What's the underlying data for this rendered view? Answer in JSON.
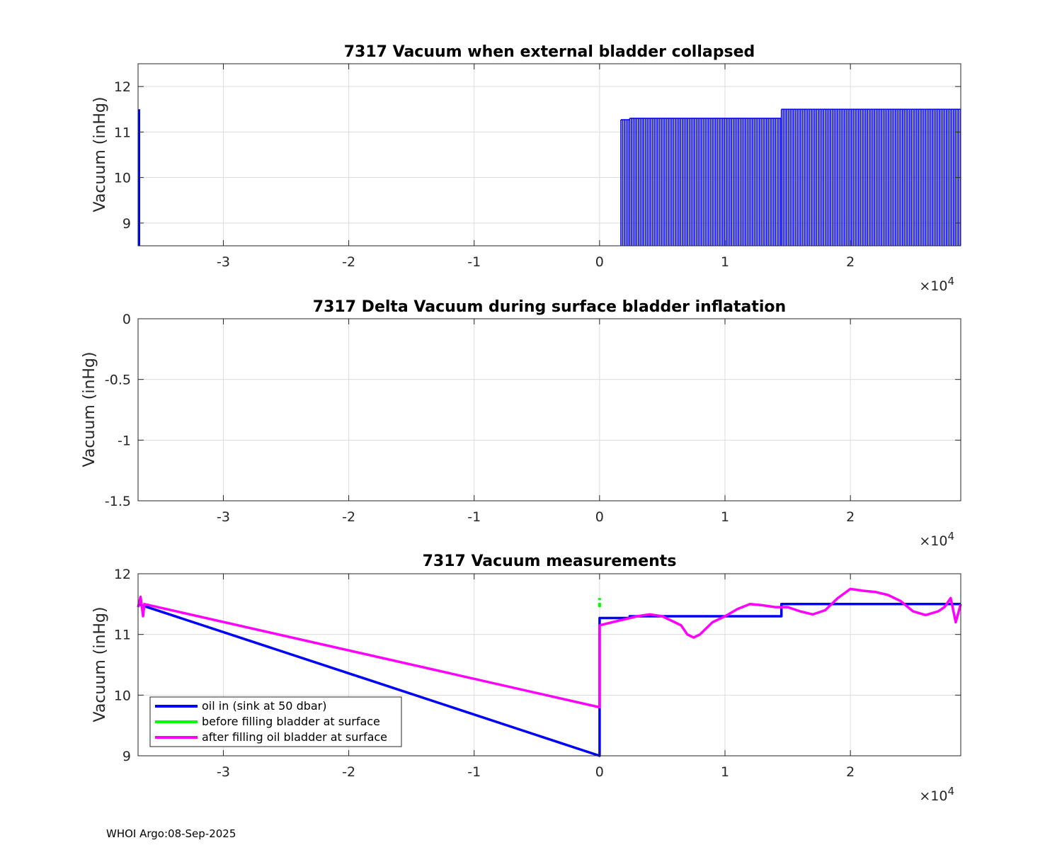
{
  "footer": "WHOI Argo:08-Sep-2025",
  "colors": {
    "blue": "#0000ff",
    "green": "#00ff00",
    "magenta": "#ff00ff"
  },
  "chart_data": [
    {
      "type": "bar",
      "title": "7317 Vacuum when external bladder collapsed",
      "ylabel": "Vacuum (inHg)",
      "xlim": [
        -36800,
        28800
      ],
      "ylim": [
        8.5,
        12.5
      ],
      "xticks": [
        -30000,
        -20000,
        -10000,
        0,
        10000,
        20000
      ],
      "xtick_labels": [
        "-3",
        "-2",
        "-1",
        "0",
        "1",
        "2"
      ],
      "yticks": [
        9,
        10,
        11,
        12
      ],
      "ytick_labels": [
        "9",
        "10",
        "11",
        "12"
      ],
      "exponent_label": "×10",
      "exponent_power": "4",
      "grid": true,
      "series": [
        {
          "name": "vacuum",
          "color": "#0000ff",
          "segments": [
            {
              "x_start": -36800,
              "x_end": -36800,
              "value": 11.5
            },
            {
              "x_start": 1700,
              "x_end": 2400,
              "value": 11.27
            },
            {
              "x_start": 2400,
              "x_end": 14500,
              "value": 11.3
            },
            {
              "x_start": 14500,
              "x_end": 28800,
              "value": 11.5
            }
          ]
        }
      ]
    },
    {
      "type": "line",
      "title": "7317 Delta Vacuum during surface bladder inflatation",
      "ylabel": "Vacuum (inHg)",
      "xlim": [
        -36800,
        28800
      ],
      "ylim": [
        -1.5,
        0
      ],
      "xticks": [
        -30000,
        -20000,
        -10000,
        0,
        10000,
        20000
      ],
      "xtick_labels": [
        "-3",
        "-2",
        "-1",
        "0",
        "1",
        "2"
      ],
      "yticks": [
        -1.5,
        -1,
        -0.5,
        0
      ],
      "ytick_labels": [
        "-1.5",
        "-1",
        "-0.5",
        "0"
      ],
      "exponent_label": "×10",
      "exponent_power": "4",
      "grid": true,
      "series": []
    },
    {
      "type": "line",
      "title": "7317 Vacuum measurements",
      "ylabel": "Vacuum (inHg)",
      "xlim": [
        -36800,
        28800
      ],
      "ylim": [
        9,
        12
      ],
      "xticks": [
        -30000,
        -20000,
        -10000,
        0,
        10000,
        20000
      ],
      "xtick_labels": [
        "-3",
        "-2",
        "-1",
        "0",
        "1",
        "2"
      ],
      "yticks": [
        9,
        10,
        11,
        12
      ],
      "ytick_labels": [
        "9",
        "10",
        "11",
        "12"
      ],
      "exponent_label": "×10",
      "exponent_power": "4",
      "grid": true,
      "legend_position": "bottom-left",
      "series": [
        {
          "name": "oil in (sink at 50 dbar)",
          "color": "#0000ff",
          "x": [
            -36800,
            0,
            0,
            100,
            2400,
            2400,
            14500,
            14500,
            28800
          ],
          "y": [
            11.5,
            9.0,
            11.27,
            11.27,
            11.27,
            11.3,
            11.3,
            11.5,
            11.5
          ]
        },
        {
          "name": "before filling bladder at surface",
          "color": "#00ff00",
          "x": [
            0,
            0
          ],
          "y": [
            11.45,
            11.6
          ]
        },
        {
          "name": "after filling oil bladder at surface",
          "color": "#ff00ff",
          "x": [
            -36800,
            -36600,
            -36400,
            -36300,
            0,
            0,
            0,
            1000,
            2000,
            3000,
            4000,
            5000,
            6000,
            6500,
            7000,
            7500,
            8000,
            9000,
            10000,
            11000,
            12000,
            13000,
            14000,
            15000,
            16000,
            17000,
            18000,
            19000,
            20000,
            21000,
            22000,
            23000,
            24000,
            25000,
            26000,
            27000,
            27500,
            28000,
            28400,
            28800
          ],
          "y": [
            11.45,
            11.62,
            11.3,
            11.5,
            9.8,
            11.1,
            11.15,
            11.2,
            11.25,
            11.3,
            11.33,
            11.3,
            11.2,
            11.15,
            11.0,
            10.95,
            11.0,
            11.2,
            11.3,
            11.42,
            11.5,
            11.48,
            11.45,
            11.45,
            11.38,
            11.33,
            11.4,
            11.6,
            11.75,
            11.72,
            11.7,
            11.65,
            11.55,
            11.38,
            11.32,
            11.38,
            11.45,
            11.6,
            11.2,
            11.5
          ]
        }
      ]
    }
  ]
}
